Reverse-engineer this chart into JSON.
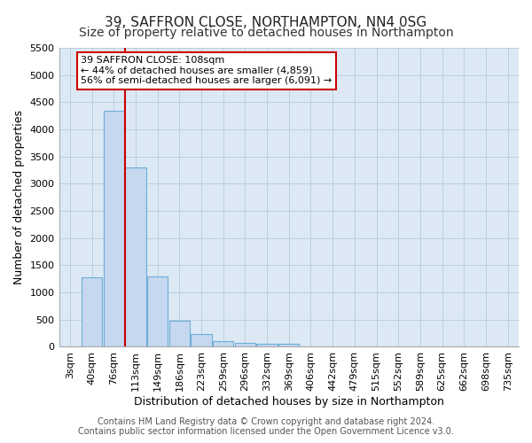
{
  "title": "39, SAFFRON CLOSE, NORTHAMPTON, NN4 0SG",
  "subtitle": "Size of property relative to detached houses in Northampton",
  "xlabel": "Distribution of detached houses by size in Northampton",
  "ylabel": "Number of detached properties",
  "footer_line1": "Contains HM Land Registry data © Crown copyright and database right 2024.",
  "footer_line2": "Contains public sector information licensed under the Open Government Licence v3.0.",
  "categories": [
    "3sqm",
    "40sqm",
    "76sqm",
    "113sqm",
    "149sqm",
    "186sqm",
    "223sqm",
    "259sqm",
    "296sqm",
    "332sqm",
    "369sqm",
    "406sqm",
    "442sqm",
    "479sqm",
    "515sqm",
    "552sqm",
    "589sqm",
    "625sqm",
    "662sqm",
    "698sqm",
    "735sqm"
  ],
  "bar_values": [
    0,
    1280,
    4350,
    3300,
    1300,
    480,
    240,
    100,
    70,
    50,
    50,
    0,
    0,
    0,
    0,
    0,
    0,
    0,
    0,
    0,
    0
  ],
  "bar_color": "#c5d8f0",
  "bar_edge_color": "#6baed6",
  "vline_color": "#cc0000",
  "vline_x": 2.5,
  "annotation_text": "39 SAFFRON CLOSE: 108sqm\n← 44% of detached houses are smaller (4,859)\n56% of semi-detached houses are larger (6,091) →",
  "annotation_box_color": "#ffffff",
  "annotation_box_edge_color": "#cc0000",
  "ylim": [
    0,
    5500
  ],
  "yticks": [
    0,
    500,
    1000,
    1500,
    2000,
    2500,
    3000,
    3500,
    4000,
    4500,
    5000,
    5500
  ],
  "plot_bg_color": "#dce9f5",
  "background_color": "#ffffff",
  "grid_color": "#b8cfe0",
  "title_fontsize": 11,
  "subtitle_fontsize": 10,
  "axis_label_fontsize": 9,
  "tick_fontsize": 8,
  "footer_fontsize": 7
}
